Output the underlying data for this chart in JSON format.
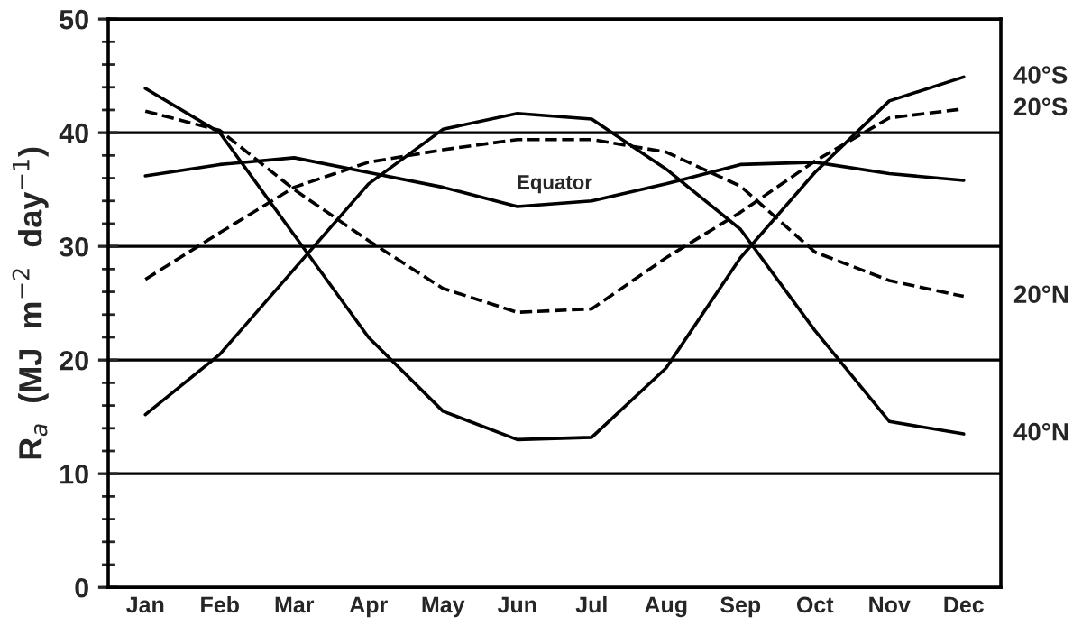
{
  "chart_data": {
    "type": "line",
    "ylabel": "R$_{a}$  (MJ  m$^{−2}$  day$^{−1}$)",
    "categories": [
      "Jan",
      "Feb",
      "Mar",
      "Apr",
      "May",
      "Jun",
      "Jul",
      "Aug",
      "Sep",
      "Oct",
      "Nov",
      "Dec"
    ],
    "ylim": [
      0,
      50
    ],
    "yticks": [
      0,
      10,
      20,
      30,
      40,
      50
    ],
    "grid": "y",
    "marker": "none",
    "legend": false,
    "series": [
      {
        "name": "40°S",
        "color": "#000000",
        "line_style": "solid",
        "values": [
          43.9,
          40,
          31,
          22,
          15.5,
          13.0,
          13.2,
          19.3,
          29,
          36.5,
          42.8,
          44.9
        ]
      },
      {
        "name": "20°S",
        "color": "#000000",
        "line_style": "dashed",
        "values": [
          41.9,
          40.2,
          35,
          30.5,
          26.3,
          24.2,
          24.5,
          29,
          33,
          37.5,
          41.3,
          42.1
        ]
      },
      {
        "color": "#000000",
        "line_style": "solid",
        "values": [
          36.2,
          37.2,
          37.8,
          36.5,
          35.2,
          33.5,
          34,
          35.5,
          37.2,
          37.4,
          36.4,
          35.8
        ]
      },
      {
        "name": "20°N",
        "color": "#000000",
        "line_style": "dashed",
        "values": [
          27.1,
          31.2,
          35.2,
          37.4,
          38.5,
          39.4,
          39.4,
          38.3,
          35.3,
          29.5,
          27,
          25.6
        ]
      },
      {
        "name": "40°N",
        "color": "#000000",
        "line_style": "solid",
        "values": [
          15.2,
          20.5,
          28,
          35.5,
          40.3,
          41.7,
          41.2,
          36.8,
          31.5,
          22.6,
          14.6,
          13.5
        ]
      }
    ],
    "annotations": [
      "Equator"
    ]
  }
}
